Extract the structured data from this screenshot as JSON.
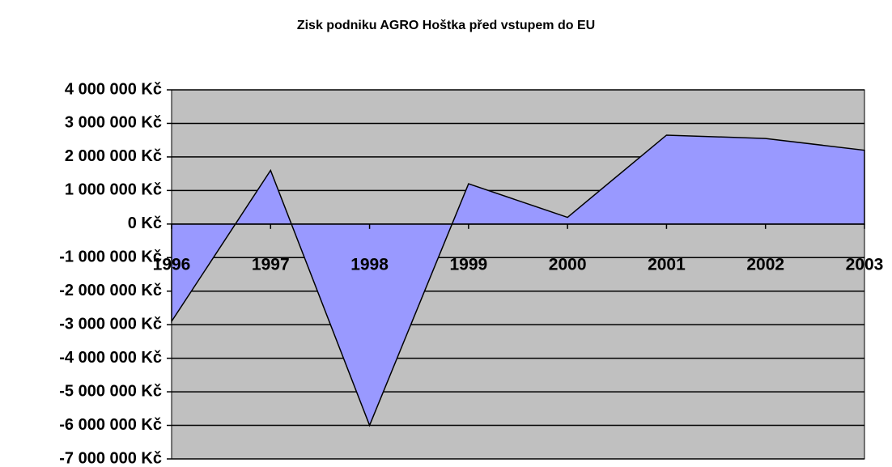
{
  "chart_data": {
    "type": "area",
    "title": "Zisk podniku AGRO Hoštka před vstupem do EU",
    "categories": [
      "1996",
      "1997",
      "1998",
      "1999",
      "2000",
      "2001",
      "2002",
      "2003"
    ],
    "values": [
      -2900000,
      1600000,
      -6000000,
      1200000,
      200000,
      2650000,
      2550000,
      2200000
    ],
    "color": "#9999ff",
    "ylim": [
      -7000000,
      4000000
    ],
    "yticks": [
      {
        "value": -7000000,
        "label": "-7 000 000 Kč"
      },
      {
        "value": -6000000,
        "label": "-6 000 000 Kč"
      },
      {
        "value": -5000000,
        "label": "-5 000 000 Kč"
      },
      {
        "value": -4000000,
        "label": "-4 000 000 Kč"
      },
      {
        "value": -3000000,
        "label": "-3 000 000 Kč"
      },
      {
        "value": -2000000,
        "label": "-2 000 000 Kč"
      },
      {
        "value": -1000000,
        "label": "-1 000 000 Kč"
      },
      {
        "value": 0,
        "label": "0 Kč"
      },
      {
        "value": 1000000,
        "label": "1 000 000 Kč"
      },
      {
        "value": 2000000,
        "label": "2 000 000 Kč"
      },
      {
        "value": 3000000,
        "label": "3 000 000 Kč"
      },
      {
        "value": 4000000,
        "label": "4 000 000 Kč"
      }
    ],
    "grid": true
  }
}
